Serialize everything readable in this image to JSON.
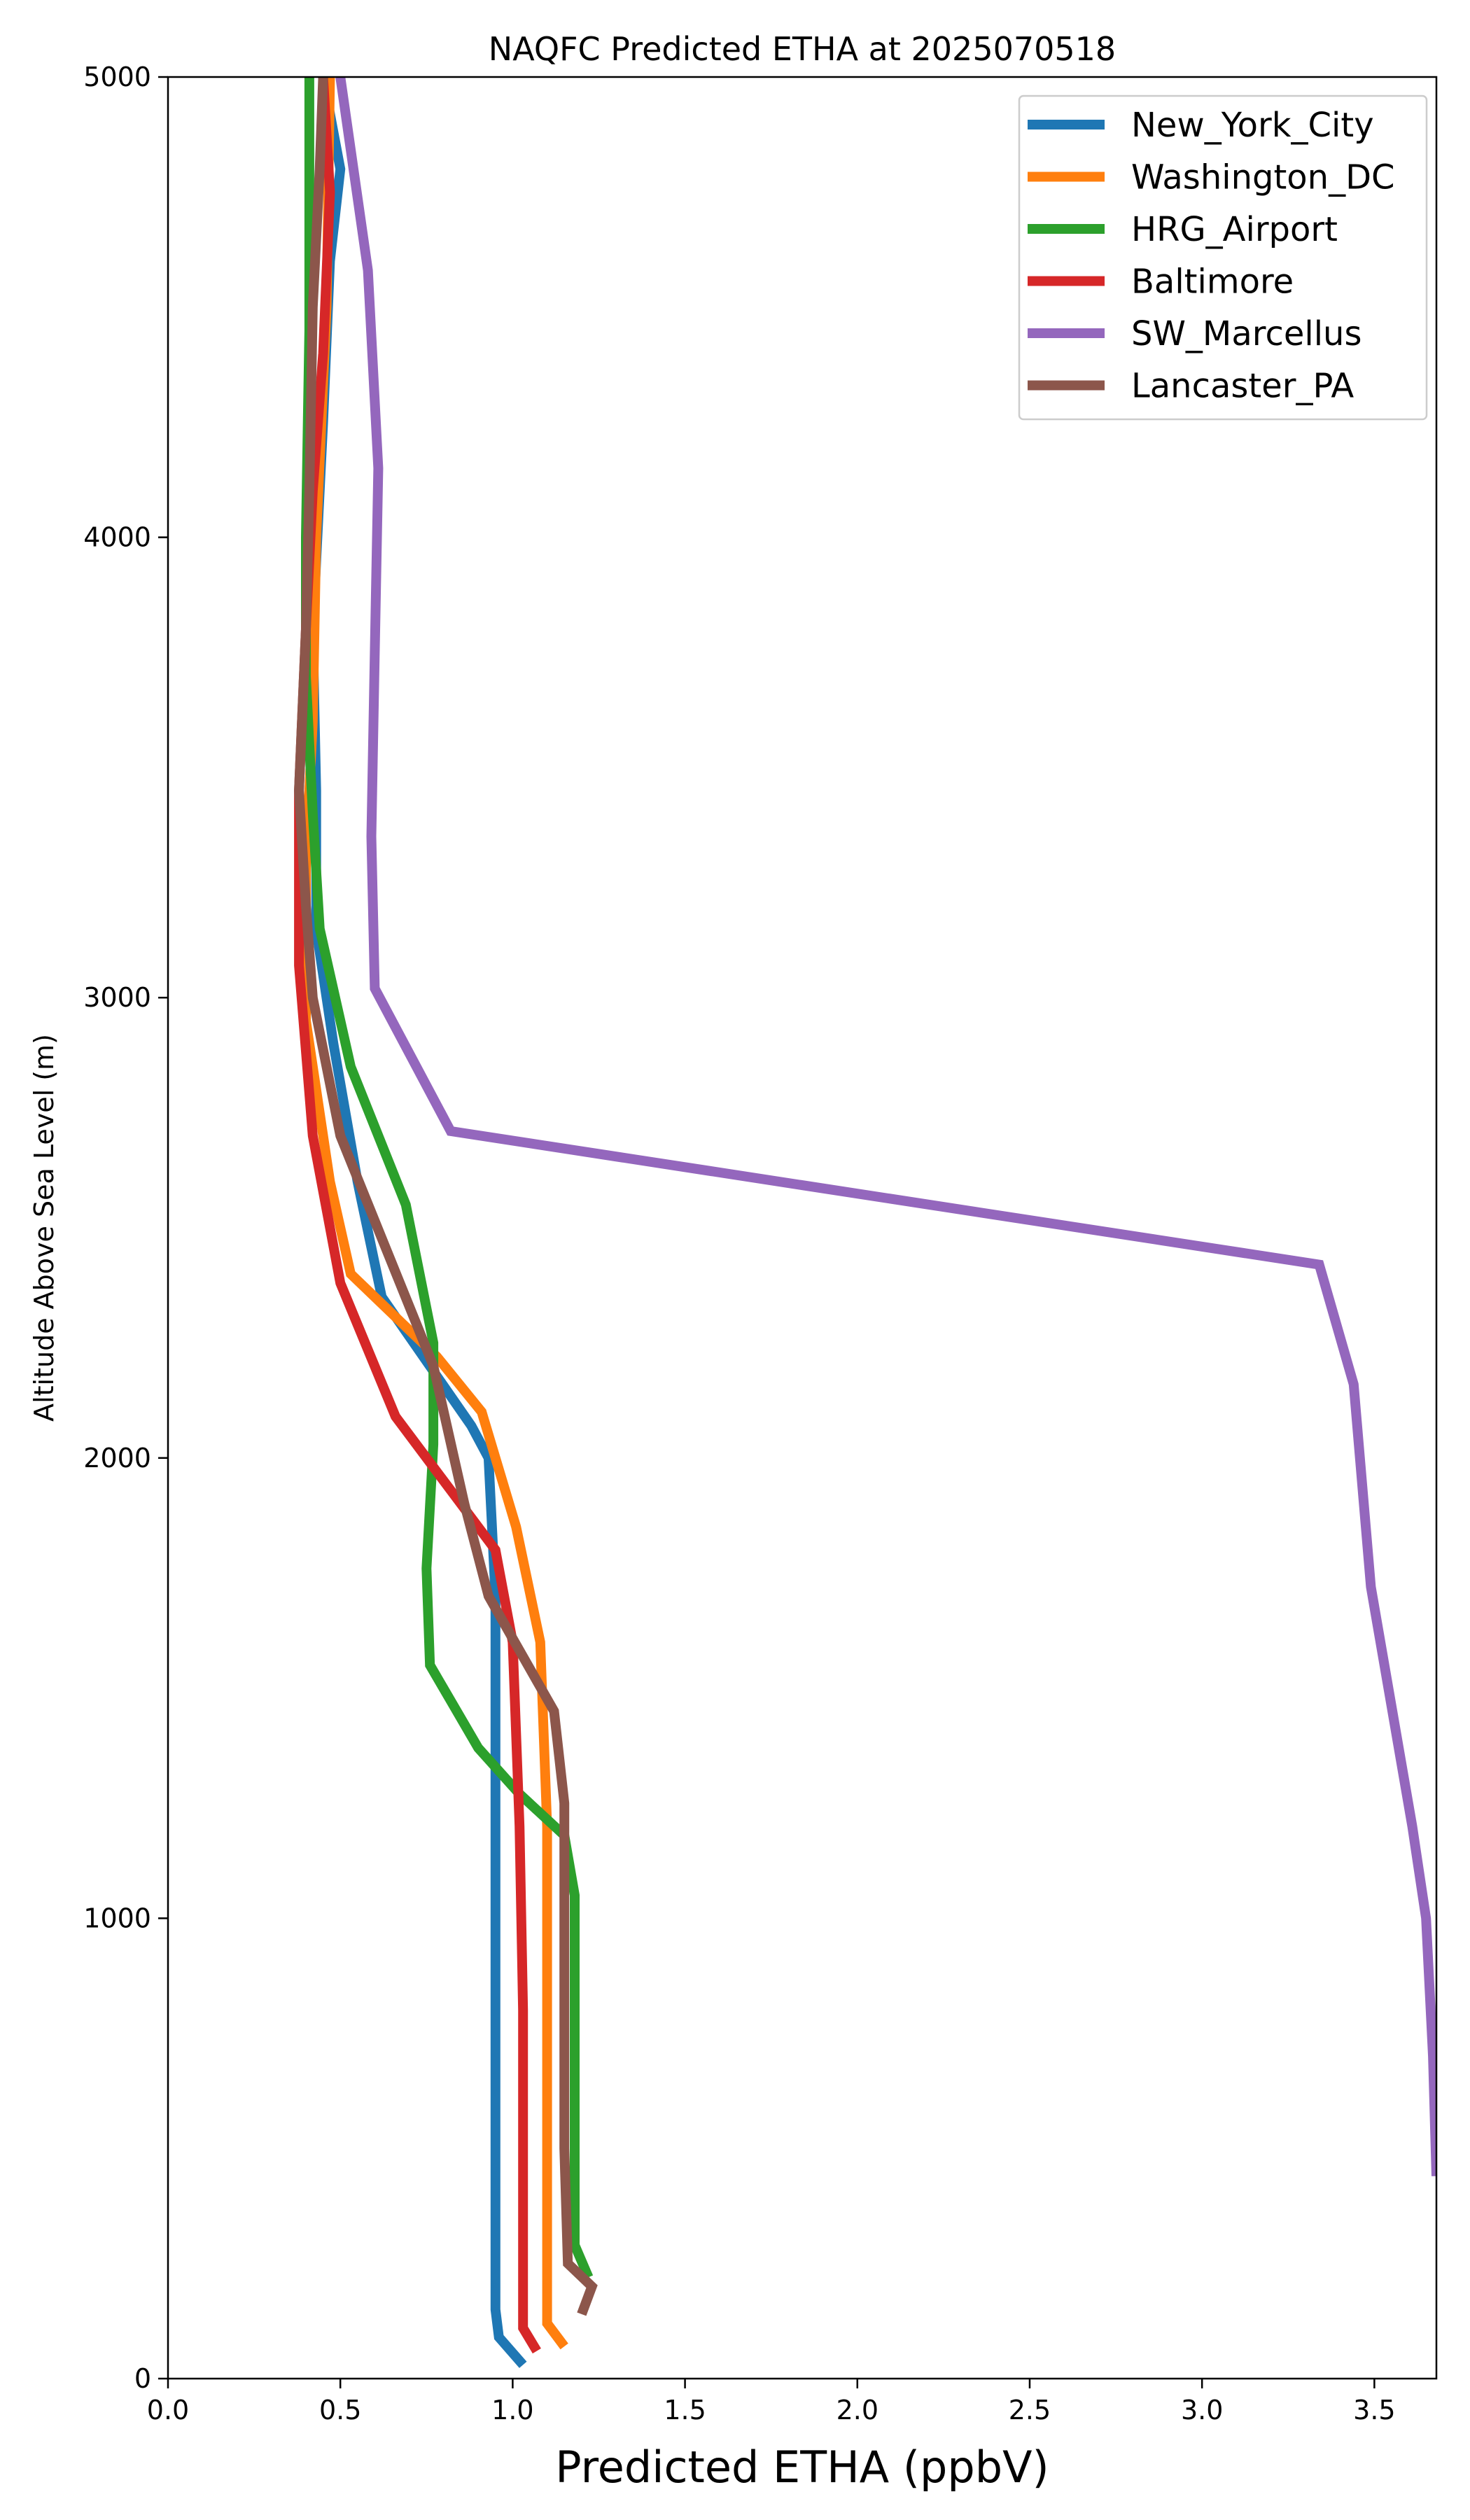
{
  "chart_data": {
    "type": "line",
    "title": "NAQFC Predicted ETHA at 2025070518",
    "xlabel": "Predicted ETHA (ppbV)",
    "ylabel": "Altitude Above Sea Level (m)",
    "xlim": [
      0,
      3.68
    ],
    "ylim": [
      0,
      5000
    ],
    "xticks": [
      "0.0",
      "0.5",
      "1.0",
      "1.5",
      "2.0",
      "2.5",
      "3.0",
      "3.5"
    ],
    "yticks": [
      "0",
      "1000",
      "2000",
      "3000",
      "4000",
      "5000"
    ],
    "grid": false,
    "legend_position": "top-right",
    "series": [
      {
        "name": "New_York_City",
        "color": "#1f77b4",
        "points": [
          [
            1.03,
            30
          ],
          [
            0.96,
            90
          ],
          [
            0.95,
            150
          ],
          [
            0.95,
            300
          ],
          [
            0.95,
            600
          ],
          [
            0.95,
            1000
          ],
          [
            0.95,
            1400
          ],
          [
            0.95,
            1700
          ],
          [
            0.93,
            2000
          ],
          [
            0.88,
            2070
          ],
          [
            0.62,
            2350
          ],
          [
            0.55,
            2600
          ],
          [
            0.48,
            2900
          ],
          [
            0.43,
            3150
          ],
          [
            0.43,
            3450
          ],
          [
            0.42,
            3800
          ],
          [
            0.45,
            4250
          ],
          [
            0.47,
            4600
          ],
          [
            0.5,
            4800
          ],
          [
            0.45,
            5000
          ]
        ]
      },
      {
        "name": "Washington_DC",
        "color": "#ff7f0e",
        "points": [
          [
            1.15,
            70
          ],
          [
            1.1,
            120
          ],
          [
            1.1,
            200
          ],
          [
            1.1,
            500
          ],
          [
            1.1,
            900
          ],
          [
            1.1,
            1200
          ],
          [
            1.08,
            1600
          ],
          [
            1.01,
            1850
          ],
          [
            0.91,
            2100
          ],
          [
            0.78,
            2220
          ],
          [
            0.53,
            2400
          ],
          [
            0.47,
            2600
          ],
          [
            0.4,
            2950
          ],
          [
            0.4,
            3300
          ],
          [
            0.42,
            3600
          ],
          [
            0.43,
            4000
          ],
          [
            0.46,
            4500
          ],
          [
            0.47,
            5000
          ]
        ]
      },
      {
        "name": "HRG_Airport",
        "color": "#2ca02c",
        "points": [
          [
            1.22,
            220
          ],
          [
            1.18,
            290
          ],
          [
            1.18,
            500
          ],
          [
            1.18,
            800
          ],
          [
            1.18,
            1050
          ],
          [
            1.15,
            1180
          ],
          [
            1.02,
            1270
          ],
          [
            0.9,
            1370
          ],
          [
            0.76,
            1550
          ],
          [
            0.75,
            1760
          ],
          [
            0.77,
            2030
          ],
          [
            0.77,
            2250
          ],
          [
            0.69,
            2550
          ],
          [
            0.53,
            2850
          ],
          [
            0.44,
            3150
          ],
          [
            0.42,
            3400
          ],
          [
            0.4,
            3700
          ],
          [
            0.4,
            4000
          ],
          [
            0.41,
            4450
          ],
          [
            0.41,
            5000
          ]
        ]
      },
      {
        "name": "Baltimore",
        "color": "#d62728",
        "points": [
          [
            1.07,
            60
          ],
          [
            1.03,
            110
          ],
          [
            1.03,
            180
          ],
          [
            1.03,
            400
          ],
          [
            1.03,
            800
          ],
          [
            1.02,
            1200
          ],
          [
            1.0,
            1600
          ],
          [
            0.95,
            1800
          ],
          [
            0.66,
            2090
          ],
          [
            0.5,
            2380
          ],
          [
            0.42,
            2700
          ],
          [
            0.38,
            3070
          ],
          [
            0.38,
            3450
          ],
          [
            0.4,
            3800
          ],
          [
            0.42,
            4100
          ],
          [
            0.45,
            4400
          ],
          [
            0.47,
            4750
          ],
          [
            0.45,
            5000
          ]
        ]
      },
      {
        "name": "SW_Marcellus",
        "color": "#9467bd",
        "points": [
          [
            3.68,
            440
          ],
          [
            3.67,
            700
          ],
          [
            3.65,
            1000
          ],
          [
            3.61,
            1200
          ],
          [
            3.49,
            1720
          ],
          [
            3.44,
            2160
          ],
          [
            3.34,
            2420
          ],
          [
            0.82,
            2710
          ],
          [
            0.6,
            3020
          ],
          [
            0.59,
            3350
          ],
          [
            0.6,
            3750
          ],
          [
            0.61,
            4150
          ],
          [
            0.58,
            4580
          ],
          [
            0.5,
            5000
          ]
        ]
      },
      {
        "name": "Lancaster_PA",
        "color": "#8c564b",
        "points": [
          [
            1.2,
            140
          ],
          [
            1.23,
            200
          ],
          [
            1.16,
            250
          ],
          [
            1.15,
            500
          ],
          [
            1.15,
            800
          ],
          [
            1.15,
            1000
          ],
          [
            1.15,
            1250
          ],
          [
            1.12,
            1450
          ],
          [
            0.93,
            1700
          ],
          [
            0.86,
            1900
          ],
          [
            0.77,
            2200
          ],
          [
            0.5,
            2700
          ],
          [
            0.42,
            3000
          ],
          [
            0.4,
            3200
          ],
          [
            0.38,
            3450
          ],
          [
            0.4,
            3800
          ],
          [
            0.41,
            4100
          ],
          [
            0.42,
            4500
          ],
          [
            0.44,
            4800
          ],
          [
            0.45,
            5000
          ]
        ]
      }
    ]
  }
}
